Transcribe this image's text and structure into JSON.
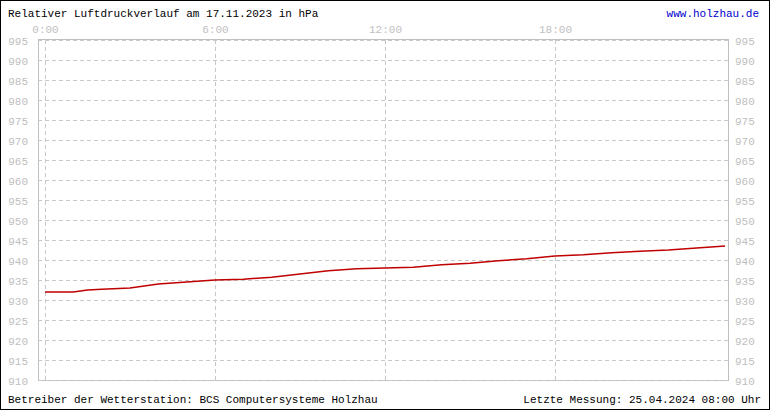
{
  "chart_data": {
    "type": "line",
    "title": "Relativer Luftdruckverlauf am 17.11.2023 in hPa",
    "source_url": "www.holzhau.de",
    "footer_left": "Betreiber der Wetterstation: BCS Computersysteme Holzhau",
    "footer_right": "Letzte Messung: 25.04.2024 08:00 Uhr",
    "x": [
      0,
      1,
      1.5,
      2,
      3,
      4,
      5,
      6,
      7,
      8,
      9,
      10,
      11,
      12,
      13,
      14,
      15,
      16,
      17,
      18,
      19,
      20,
      21,
      22,
      23,
      24
    ],
    "values": [
      932,
      932,
      932.5,
      932.7,
      933,
      934,
      934.5,
      935,
      935.2,
      935.7,
      936.5,
      937.3,
      937.8,
      938,
      938.2,
      938.8,
      939.2,
      939.8,
      940.3,
      941,
      941.3,
      941.8,
      942.2,
      942.5,
      943,
      943.5
    ],
    "color": "#c00000",
    "xlim": [
      0,
      24
    ],
    "xticks": [
      {
        "value": 0,
        "label": "0:00"
      },
      {
        "value": 6,
        "label": "6:00"
      },
      {
        "value": 12,
        "label": "12:00"
      },
      {
        "value": 18,
        "label": "18:00"
      }
    ],
    "ylim": [
      910,
      995
    ],
    "yticks": [
      910,
      915,
      920,
      925,
      930,
      935,
      940,
      945,
      950,
      955,
      960,
      965,
      970,
      975,
      980,
      985,
      990,
      995
    ],
    "grid": true
  }
}
